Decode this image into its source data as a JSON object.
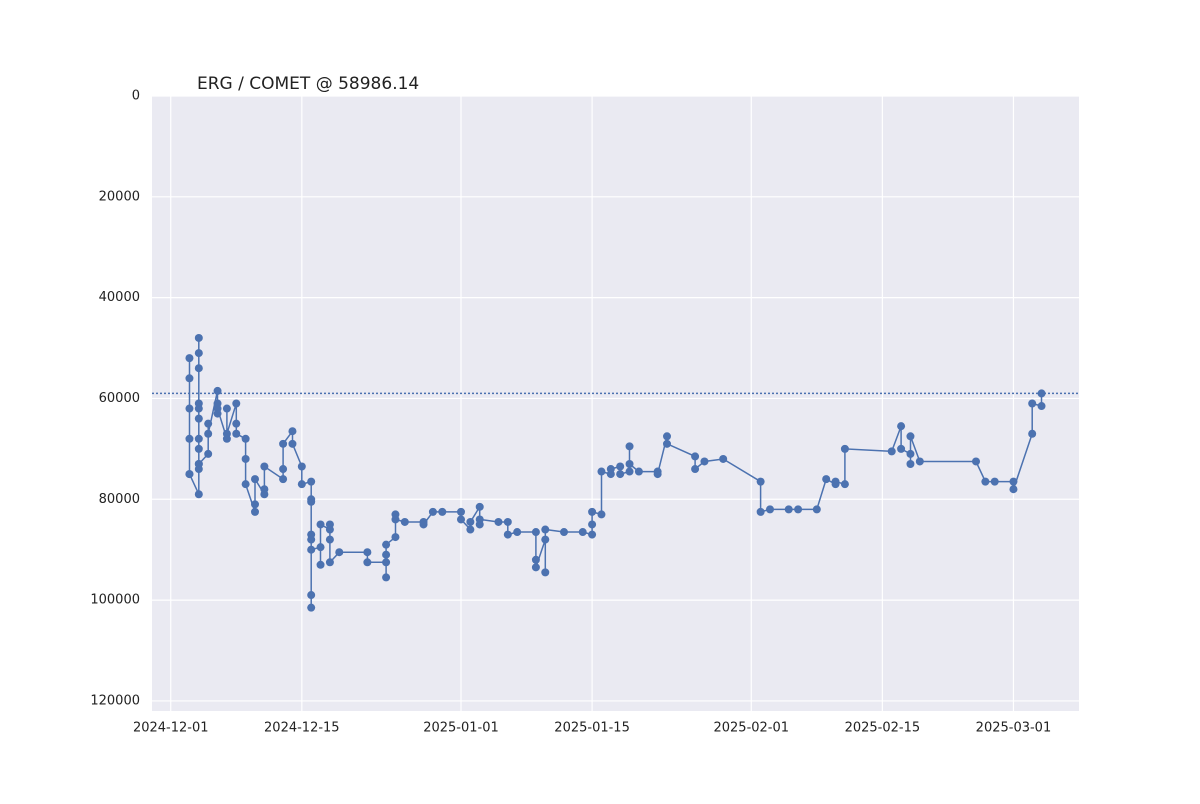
{
  "chart_data": {
    "type": "line",
    "title": "ERG / COMET @ 58986.14",
    "reference_line": 58986.14,
    "series": [
      {
        "name": "ERG / COMET",
        "color": "#4c72b0",
        "x": [
          "2024-12-03",
          "2024-12-03",
          "2024-12-03",
          "2024-12-03",
          "2024-12-03",
          "2024-12-03",
          "2024-12-04",
          "2024-12-04",
          "2024-12-04",
          "2024-12-04",
          "2024-12-04",
          "2024-12-04",
          "2024-12-04",
          "2024-12-04",
          "2024-12-04",
          "2024-12-04",
          "2024-12-04",
          "2024-12-04",
          "2024-12-05",
          "2024-12-05",
          "2024-12-05",
          "2024-12-06",
          "2024-12-06",
          "2024-12-06",
          "2024-12-06",
          "2024-12-07",
          "2024-12-07",
          "2024-12-07",
          "2024-12-08",
          "2024-12-08",
          "2024-12-08",
          "2024-12-09",
          "2024-12-09",
          "2024-12-09",
          "2024-12-10",
          "2024-12-10",
          "2024-12-10",
          "2024-12-11",
          "2024-12-11",
          "2024-12-11",
          "2024-12-13",
          "2024-12-13",
          "2024-12-13",
          "2024-12-14",
          "2024-12-14",
          "2024-12-15",
          "2024-12-15",
          "2024-12-16",
          "2024-12-16",
          "2024-12-16",
          "2024-12-16",
          "2024-12-16",
          "2024-12-16",
          "2024-12-16",
          "2024-12-16",
          "2024-12-17",
          "2024-12-17",
          "2024-12-17",
          "2024-12-18",
          "2024-12-18",
          "2024-12-18",
          "2024-12-18",
          "2024-12-19",
          "2024-12-22",
          "2024-12-22",
          "2024-12-24",
          "2024-12-24",
          "2024-12-24",
          "2024-12-24",
          "2024-12-25",
          "2024-12-25",
          "2024-12-25",
          "2024-12-26",
          "2024-12-28",
          "2024-12-28",
          "2024-12-29",
          "2024-12-30",
          "2025-01-01",
          "2025-01-01",
          "2025-01-02",
          "2025-01-02",
          "2025-01-03",
          "2025-01-03",
          "2025-01-03",
          "2025-01-05",
          "2025-01-06",
          "2025-01-06",
          "2025-01-07",
          "2025-01-09",
          "2025-01-09",
          "2025-01-09",
          "2025-01-10",
          "2025-01-10",
          "2025-01-10",
          "2025-01-12",
          "2025-01-14",
          "2025-01-15",
          "2025-01-15",
          "2025-01-15",
          "2025-01-16",
          "2025-01-16",
          "2025-01-17",
          "2025-01-17",
          "2025-01-18",
          "2025-01-18",
          "2025-01-19",
          "2025-01-19",
          "2025-01-19",
          "2025-01-20",
          "2025-01-22",
          "2025-01-22",
          "2025-01-23",
          "2025-01-23",
          "2025-01-26",
          "2025-01-26",
          "2025-01-27",
          "2025-01-29",
          "2025-02-02",
          "2025-02-02",
          "2025-02-03",
          "2025-02-05",
          "2025-02-06",
          "2025-02-08",
          "2025-02-09",
          "2025-02-10",
          "2025-02-10",
          "2025-02-11",
          "2025-02-11",
          "2025-02-16",
          "2025-02-17",
          "2025-02-17",
          "2025-02-18",
          "2025-02-18",
          "2025-02-18",
          "2025-02-19",
          "2025-02-25",
          "2025-02-26",
          "2025-02-27",
          "2025-03-01",
          "2025-03-01",
          "2025-03-03",
          "2025-03-03",
          "2025-03-04",
          "2025-03-04"
        ],
        "values": [
          75000,
          68000,
          52000,
          56000,
          62000,
          75000,
          79000,
          70000,
          62000,
          54000,
          48000,
          51000,
          61000,
          73000,
          74000,
          68000,
          64000,
          73000,
          71000,
          65000,
          67000,
          58500,
          63000,
          61000,
          62000,
          68000,
          62000,
          67000,
          61000,
          65000,
          67000,
          68000,
          72000,
          77000,
          82500,
          81000,
          76000,
          79000,
          78000,
          73500,
          76000,
          74000,
          69000,
          66500,
          69000,
          73500,
          77000,
          76500,
          80000,
          88000,
          99000,
          101500,
          80500,
          87000,
          90000,
          89500,
          93000,
          85000,
          86000,
          88000,
          85000,
          92500,
          90500,
          90500,
          92500,
          92500,
          95500,
          91000,
          89000,
          87500,
          83000,
          84000,
          84500,
          84500,
          85000,
          82500,
          82500,
          82500,
          84000,
          86000,
          84500,
          81500,
          85000,
          84000,
          84500,
          84500,
          87000,
          86500,
          86500,
          92000,
          93500,
          88000,
          94500,
          86000,
          86500,
          86500,
          87000,
          85000,
          82500,
          83000,
          74500,
          75000,
          74000,
          73500,
          75000,
          74500,
          69500,
          73000,
          74500,
          74500,
          75000,
          67500,
          69000,
          71500,
          74000,
          72500,
          72000,
          76500,
          82500,
          82000,
          82000,
          82000,
          82000,
          76000,
          77000,
          76500,
          77000,
          70000,
          70500,
          65500,
          70000,
          71000,
          73000,
          67500,
          72500,
          72500,
          76500,
          76500,
          76500,
          78000,
          67000,
          61000,
          61500,
          59000
        ]
      }
    ],
    "xlim": [
      "2024-11-29",
      "2025-03-08"
    ],
    "xticks": [
      "2024-12-01",
      "2024-12-15",
      "2025-01-01",
      "2025-01-15",
      "2025-02-01",
      "2025-02-15",
      "2025-03-01"
    ],
    "ylim": [
      0,
      122000
    ],
    "y_inverted": true,
    "yticks": [
      0,
      20000,
      40000,
      60000,
      80000,
      100000,
      120000
    ],
    "grid": true
  }
}
